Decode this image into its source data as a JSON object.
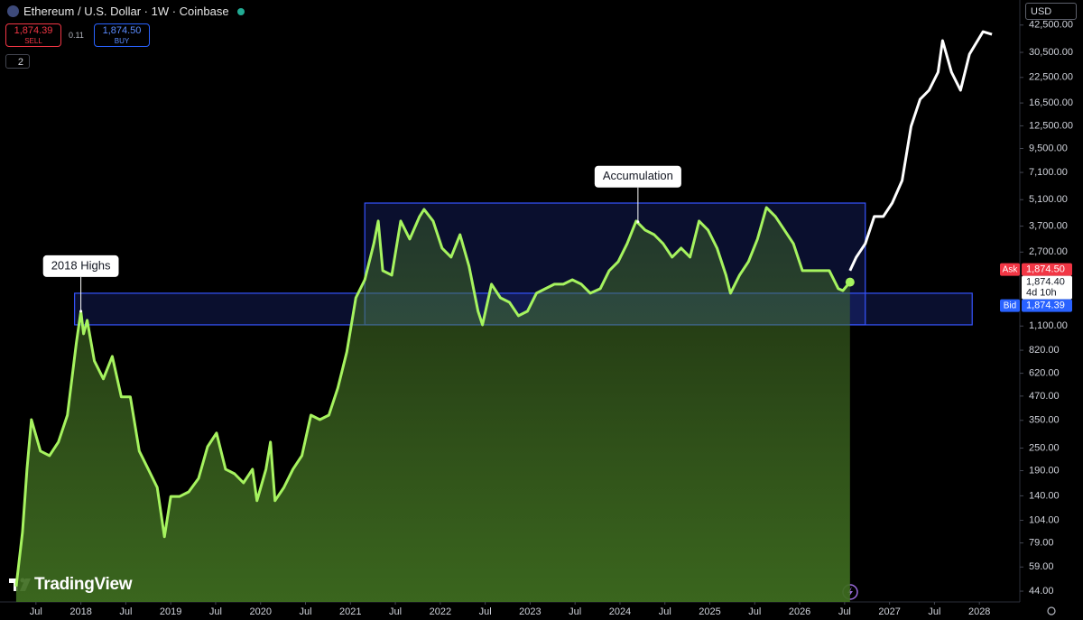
{
  "toolbar": {
    "sell_price": "1,874.39",
    "sell_label": "SELL",
    "spread": "0.11",
    "buy_price": "1,874.50",
    "buy_label": "BUY",
    "indicators": "2",
    "currency": "USD",
    "logo": "TradingView"
  },
  "chart_data": {
    "type": "line",
    "title": "Ethereum / U.S. Dollar · 1W · Coinbase",
    "log_scale": true,
    "xlim": [
      2017.1,
      2028.45
    ],
    "ylim": [
      38.6,
      57600
    ],
    "xticks": [
      {
        "value": 2017.5,
        "label": "Jul"
      },
      2018,
      {
        "value": 2018.5,
        "label": "Jul"
      },
      2019,
      {
        "value": 2019.5,
        "label": "Jul"
      },
      2020,
      {
        "value": 2020.5,
        "label": "Jul"
      },
      2021,
      {
        "value": 2021.5,
        "label": "Jul"
      },
      2022,
      {
        "value": 2022.5,
        "label": "Jul"
      },
      2023,
      {
        "value": 2023.5,
        "label": "Jul"
      },
      2024,
      {
        "value": 2024.5,
        "label": "Jul"
      },
      2025,
      {
        "value": 2025.5,
        "label": "Jul"
      },
      2026,
      {
        "value": 2026.5,
        "label": "Jul"
      },
      2027,
      {
        "value": 2027.5,
        "label": "Jul"
      },
      2028
    ],
    "yticks": [
      {
        "value": 42500,
        "label": "42,500.00"
      },
      {
        "value": 30500,
        "label": "30,500.00"
      },
      {
        "value": 22500,
        "label": "22,500.00"
      },
      {
        "value": 16500,
        "label": "16,500.00"
      },
      {
        "value": 12500,
        "label": "12,500.00"
      },
      {
        "value": 9500,
        "label": "9,500.00"
      },
      {
        "value": 7100,
        "label": "7,100.00"
      },
      {
        "value": 5100,
        "label": "5,100.00"
      },
      {
        "value": 3700,
        "label": "3,700.00"
      },
      {
        "value": 2700,
        "label": "2,700.00"
      },
      {
        "value": 1100,
        "label": "1,100.00"
      },
      {
        "value": 820,
        "label": "820.00"
      },
      {
        "value": 620,
        "label": "620.00"
      },
      {
        "value": 470,
        "label": "470.00"
      },
      {
        "value": 350,
        "label": "350.00"
      },
      {
        "value": 250,
        "label": "250.00"
      },
      {
        "value": 190,
        "label": "190.00"
      },
      {
        "value": 140,
        "label": "140.00"
      },
      {
        "value": 104,
        "label": "104.00"
      },
      {
        "value": 79,
        "label": "79.00"
      },
      {
        "value": 59,
        "label": "59.00"
      },
      {
        "value": 44,
        "label": "44.00"
      }
    ],
    "series": [
      {
        "color": "#a6f35f",
        "fill": true,
        "x": [
          2017.28,
          2017.35,
          2017.4,
          2017.45,
          2017.55,
          2017.65,
          2017.75,
          2017.85,
          2017.95,
          2018.0,
          2018.03,
          2018.07,
          2018.15,
          2018.25,
          2018.35,
          2018.45,
          2018.55,
          2018.65,
          2018.75,
          2018.85,
          2018.93,
          2019.0,
          2019.1,
          2019.2,
          2019.31,
          2019.41,
          2019.51,
          2019.61,
          2019.71,
          2019.81,
          2019.91,
          2019.96,
          2020.06,
          2020.11,
          2020.16,
          2020.26,
          2020.36,
          2020.46,
          2020.56,
          2020.66,
          2020.76,
          2020.86,
          2020.96,
          2021.06,
          2021.16,
          2021.26,
          2021.31,
          2021.36,
          2021.46,
          2021.56,
          2021.66,
          2021.77,
          2021.82,
          2021.92,
          2022.02,
          2022.12,
          2022.22,
          2022.32,
          2022.42,
          2022.47,
          2022.57,
          2022.67,
          2022.77,
          2022.87,
          2022.97,
          2023.07,
          2023.17,
          2023.27,
          2023.37,
          2023.47,
          2023.57,
          2023.67,
          2023.78,
          2023.88,
          2023.98,
          2024.08,
          2024.18,
          2024.28,
          2024.38,
          2024.48,
          2024.58,
          2024.68,
          2024.78,
          2024.88,
          2024.98,
          2025.08,
          2025.18,
          2025.23,
          2025.33,
          2025.43,
          2025.53,
          2025.63,
          2025.73,
          2025.83,
          2025.93,
          2026.03,
          2026.13,
          2026.23,
          2026.33,
          2026.43,
          2026.48,
          2026.56
        ],
        "values": [
          46.6,
          89.9,
          193.5,
          353,
          241,
          228,
          269,
          373,
          897,
          1316,
          1001,
          1180,
          721,
          579,
          761,
          465,
          465,
          241,
          193.5,
          155,
          85.1,
          139,
          139,
          147,
          173,
          254,
          300,
          193.5,
          183,
          164,
          193.5,
          132,
          193.5,
          269,
          132,
          155,
          193.5,
          228,
          373,
          353,
          373,
          518,
          804,
          1550,
          1930,
          2993,
          3935,
          2154,
          2040,
          3935,
          3162,
          4158,
          4535,
          3935,
          2834,
          2540,
          3337,
          2275,
          1316,
          1116,
          1828,
          1550,
          1467,
          1246,
          1316,
          1638,
          1731,
          1828,
          1828,
          1930,
          1828,
          1638,
          1731,
          2154,
          2404,
          2993,
          3935,
          3527,
          3337,
          2993,
          2540,
          2834,
          2540,
          3935,
          3527,
          2834,
          2040,
          1638,
          2040,
          2404,
          3162,
          4636,
          4158,
          3527,
          2993,
          2154,
          2154,
          2154,
          2154,
          1731,
          1691,
          1874.4
        ]
      },
      {
        "color": "#ffffff",
        "fill": false,
        "x": [
          2026.56,
          2026.63,
          2026.73,
          2026.83,
          2026.93,
          2027.03,
          2027.14,
          2027.24,
          2027.34,
          2027.44,
          2027.54,
          2027.59,
          2027.69,
          2027.79,
          2027.89,
          2028.04,
          2028.14
        ],
        "values": [
          2154,
          2540,
          2993,
          4158,
          4158,
          4895,
          6438,
          12430,
          17260,
          19260,
          23970,
          35170,
          23970,
          19260,
          29850,
          39230,
          37950
        ]
      }
    ],
    "zones": [
      {
        "x": [
          2021.16,
          2026.73
        ],
        "y": [
          1116,
          4895
        ],
        "color": "#3654ff"
      },
      {
        "x": [
          2017.93,
          2027.92
        ],
        "y": [
          1116,
          1638
        ],
        "color": "#3654ff"
      }
    ],
    "annotations": [
      {
        "text": "2018 Highs",
        "x": 2018.0,
        "y": 1316
      },
      {
        "text": "Accumulation",
        "x": 2024.2,
        "y": 3900
      }
    ],
    "price_lines": [
      {
        "name": "Ask",
        "value": 1874.5,
        "label": "1,874.50",
        "color": "#f23645"
      },
      {
        "value": 1874.4,
        "label": "1,874.40",
        "countdown": "4d 10h",
        "color": "#ffffff"
      },
      {
        "name": "Bid",
        "value": 1874.39,
        "label": "1,874.39",
        "color": "#2962ff"
      }
    ]
  }
}
